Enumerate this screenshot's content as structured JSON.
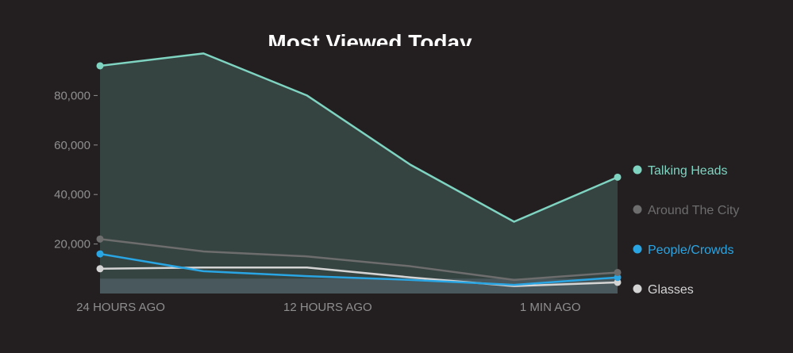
{
  "chart_data": {
    "type": "line",
    "title": "Most Viewed Today",
    "xlabel": "",
    "ylabel": "",
    "x": [
      0,
      1,
      2,
      3,
      4,
      5
    ],
    "x_ticks": [
      {
        "x": 0.2,
        "label": "24 HOURS AGO"
      },
      {
        "x": 2.2,
        "label": "12 HOURS AGO"
      },
      {
        "x": 4.35,
        "label": "1 MIN AGO"
      }
    ],
    "y_ticks": [
      {
        "value": 20000,
        "label": "20,000"
      },
      {
        "value": 40000,
        "label": "40,000"
      },
      {
        "value": 60000,
        "label": "60,000"
      },
      {
        "value": 80000,
        "label": "80,000"
      }
    ],
    "ylim": [
      0,
      100000
    ],
    "grid": false,
    "legend": "right",
    "series": [
      {
        "name": "Talking Heads",
        "color": "#7fd4c1",
        "values": [
          92000,
          97000,
          80000,
          52000,
          29000,
          47000
        ],
        "marker_points": [
          0,
          5
        ],
        "area": true
      },
      {
        "name": "Around The City",
        "color": "#6d6d6d",
        "values": [
          22000,
          17000,
          15000,
          11000,
          5500,
          8500
        ],
        "marker_points": [
          0,
          5
        ],
        "area": false
      },
      {
        "name": "People/Crowds",
        "color": "#2aa5e3",
        "values": [
          16000,
          9000,
          7000,
          5500,
          3500,
          6500
        ],
        "marker_points": [
          0,
          5
        ],
        "area": false
      },
      {
        "name": "Glasses",
        "color": "#d4d4d4",
        "values": [
          10000,
          10500,
          10500,
          6500,
          3000,
          4500
        ],
        "marker_points": [
          0,
          5
        ],
        "area": false
      }
    ]
  }
}
